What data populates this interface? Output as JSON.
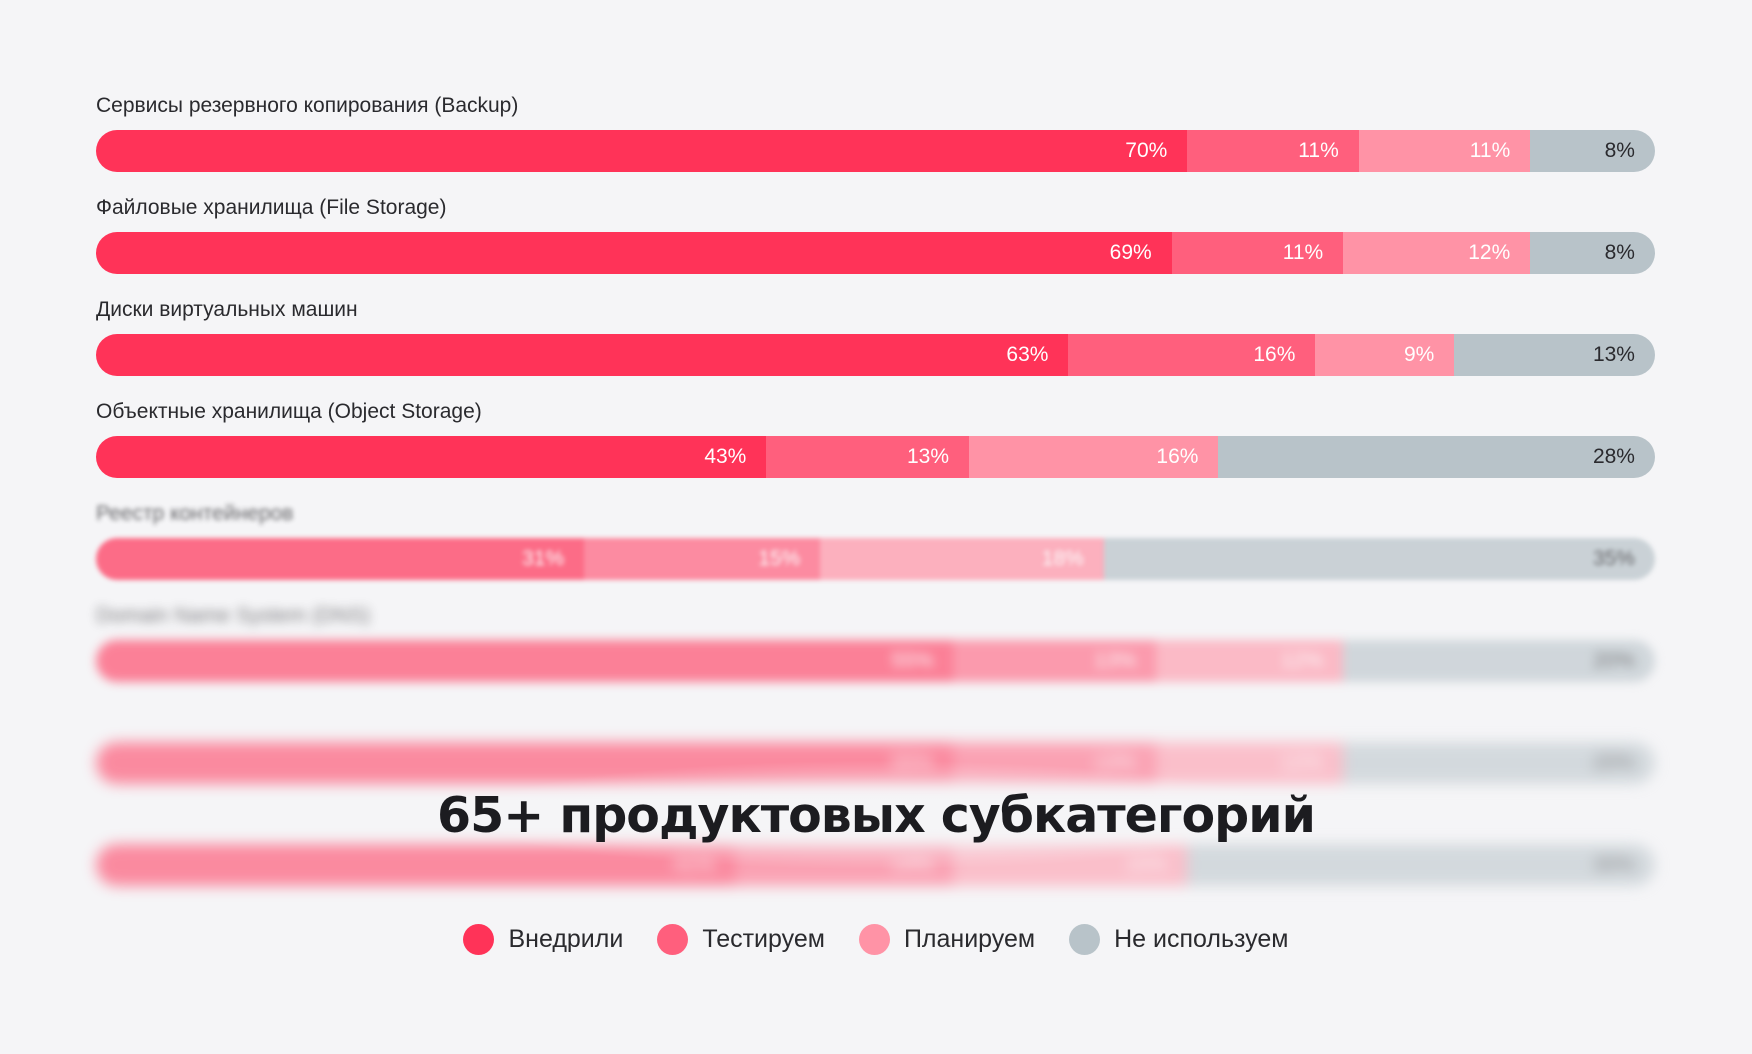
{
  "chart_data": {
    "type": "bar",
    "orientation": "horizontal",
    "stacked": true,
    "normalized": true,
    "headline": "65+ продуктовых субкатегорий",
    "series": [
      {
        "name": "Внедрили",
        "color": "#ff3358"
      },
      {
        "name": "Тестируем",
        "color": "#ff5f7d"
      },
      {
        "name": "Планируем",
        "color": "#ff93a6"
      },
      {
        "name": "Не используем",
        "color": "#b8c3c9"
      }
    ],
    "rows": [
      {
        "label": "Сервисы резервного копирования (Backup)",
        "values": [
          70,
          11,
          11,
          8
        ],
        "blurred": false
      },
      {
        "label": "Файловые хранилища (File Storage)",
        "values": [
          69,
          11,
          12,
          8
        ],
        "blurred": false
      },
      {
        "label": "Диски виртуальных машин",
        "values": [
          63,
          16,
          9,
          13
        ],
        "blurred": false
      },
      {
        "label": "Объектные хранилища (Object Storage)",
        "values": [
          43,
          13,
          16,
          28
        ],
        "blurred": false
      },
      {
        "label": "Реестр контейнеров",
        "values": [
          31,
          15,
          18,
          35
        ],
        "blurred": true
      },
      {
        "label": "Domain Name System (DNS)",
        "values": [
          55,
          13,
          12,
          20
        ],
        "blurred": true
      },
      {
        "label": "",
        "values": [
          55,
          13,
          12,
          20
        ],
        "blurred": true
      },
      {
        "label": "",
        "values": [
          41,
          14,
          15,
          30
        ],
        "blurred": true
      }
    ]
  }
}
